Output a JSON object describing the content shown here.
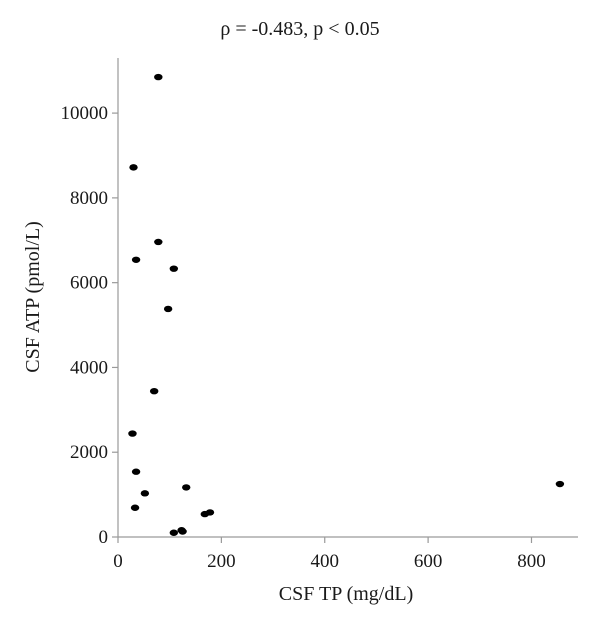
{
  "chart_data": {
    "type": "scatter",
    "title": "ρ = -0.483, p < 0.05",
    "xlabel": "CSF TP (mg/dL)",
    "ylabel": "CSF ATP (pmol/L)",
    "xlim": [
      0,
      890
    ],
    "ylim": [
      0,
      11300
    ],
    "xticks": [
      0,
      200,
      400,
      600,
      800
    ],
    "yticks": [
      0,
      2000,
      4000,
      6000,
      8000,
      10000
    ],
    "grid": false,
    "point_color": "#000000",
    "points": [
      {
        "x": 78,
        "y": 10850
      },
      {
        "x": 30,
        "y": 8720
      },
      {
        "x": 78,
        "y": 6960
      },
      {
        "x": 35,
        "y": 6540
      },
      {
        "x": 108,
        "y": 6330
      },
      {
        "x": 97,
        "y": 5380
      },
      {
        "x": 70,
        "y": 3440
      },
      {
        "x": 28,
        "y": 2440
      },
      {
        "x": 35,
        "y": 1540
      },
      {
        "x": 52,
        "y": 1030
      },
      {
        "x": 132,
        "y": 1170
      },
      {
        "x": 33,
        "y": 690
      },
      {
        "x": 168,
        "y": 540
      },
      {
        "x": 178,
        "y": 580
      },
      {
        "x": 123,
        "y": 160
      },
      {
        "x": 125,
        "y": 130
      },
      {
        "x": 108,
        "y": 100
      },
      {
        "x": 855,
        "y": 1250
      }
    ]
  }
}
